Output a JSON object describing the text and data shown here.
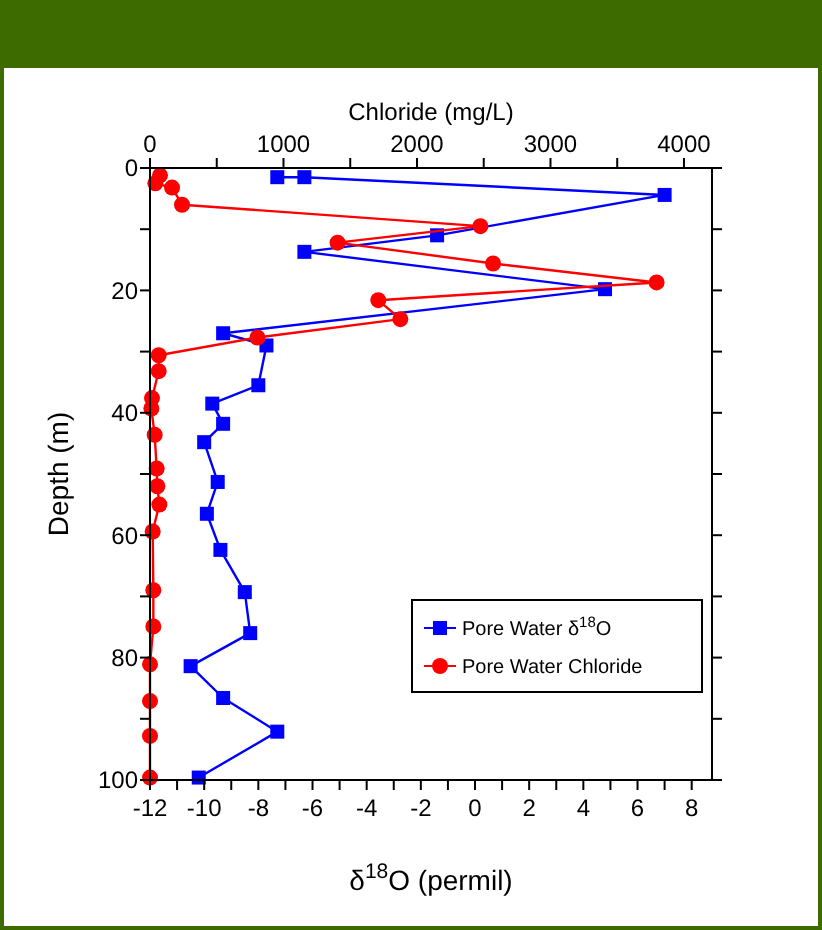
{
  "chart_data": {
    "type": "line",
    "xlabel": "δ$^{18}$O (permil)",
    "x2label": "Chloride (mg/L)",
    "ylabel": "Depth (m)",
    "xlim": [
      -12,
      8.75
    ],
    "xticks": [
      -12,
      {
        "value": -11,
        "label": null
      },
      -10,
      {
        "value": -9,
        "label": null
      },
      -8,
      {
        "value": -7,
        "label": null
      },
      -6,
      {
        "value": -5,
        "label": null
      },
      -4,
      {
        "value": -3,
        "label": null
      },
      -2,
      {
        "value": -1,
        "label": null
      },
      0,
      {
        "value": 1,
        "label": null
      },
      2,
      {
        "value": 3,
        "label": null
      },
      4,
      {
        "value": 5,
        "label": null
      },
      6,
      {
        "value": 7,
        "label": null
      },
      8
    ],
    "x2lim": [
      0,
      4210
    ],
    "x2ticks": [
      0,
      {
        "value": 500,
        "label": null
      },
      1000,
      {
        "value": 1500,
        "label": null
      },
      2000,
      {
        "value": 2500,
        "label": null
      },
      3000,
      {
        "value": 3500,
        "label": null
      },
      4000
    ],
    "ylim": [
      100,
      0
    ],
    "yticks": [
      0,
      {
        "value": 10,
        "label": null
      },
      20,
      {
        "value": 30,
        "label": null
      },
      40,
      {
        "value": 50,
        "label": null
      },
      60,
      {
        "value": 70,
        "label": null
      },
      80,
      {
        "value": 90,
        "label": null
      },
      100
    ],
    "grid": false,
    "legend": "bottom right",
    "line_style": "solid",
    "series": [
      {
        "name": "Pore Water δ$^{18}$O",
        "color": "#0000ff",
        "marker": "square",
        "x": [
          -7.3,
          -6.3,
          7,
          -1.4,
          -6.3,
          4.8,
          -9.3,
          -7.7,
          -8,
          -9.7,
          -9.3,
          -10,
          -9.5,
          -9.9,
          -9.4,
          -8.5,
          -8.3,
          -10.5,
          -9.3,
          -7.3,
          -10.2
        ],
        "values": [
          1.5,
          1.5,
          4.4,
          11,
          13.7,
          19.8,
          27,
          29,
          35.5,
          38.5,
          41.8,
          44.8,
          51.3,
          56.5,
          62.4,
          69.3,
          76,
          81.4,
          86.6,
          92.1,
          99.6
        ]
      },
      {
        "name": "Pore Water Chloride",
        "color": "#ff0000",
        "marker": "circle",
        "axis": "x2",
        "x": [
          75,
          40,
          165,
          240,
          2475,
          1405,
          2570,
          3795,
          1710,
          1875,
          805,
          65,
          65,
          15,
          10,
          35,
          50,
          55,
          70,
          20,
          25,
          25,
          0,
          0,
          0,
          0
        ],
        "values": [
          1.2,
          2.5,
          3.2,
          6,
          9.5,
          12.2,
          15.6,
          18.7,
          21.6,
          24.7,
          27.7,
          30.6,
          33.2,
          37.6,
          39.3,
          43.6,
          49.1,
          52,
          55,
          59.4,
          69,
          74.9,
          81.1,
          87.1,
          92.8,
          99.6
        ]
      }
    ]
  }
}
